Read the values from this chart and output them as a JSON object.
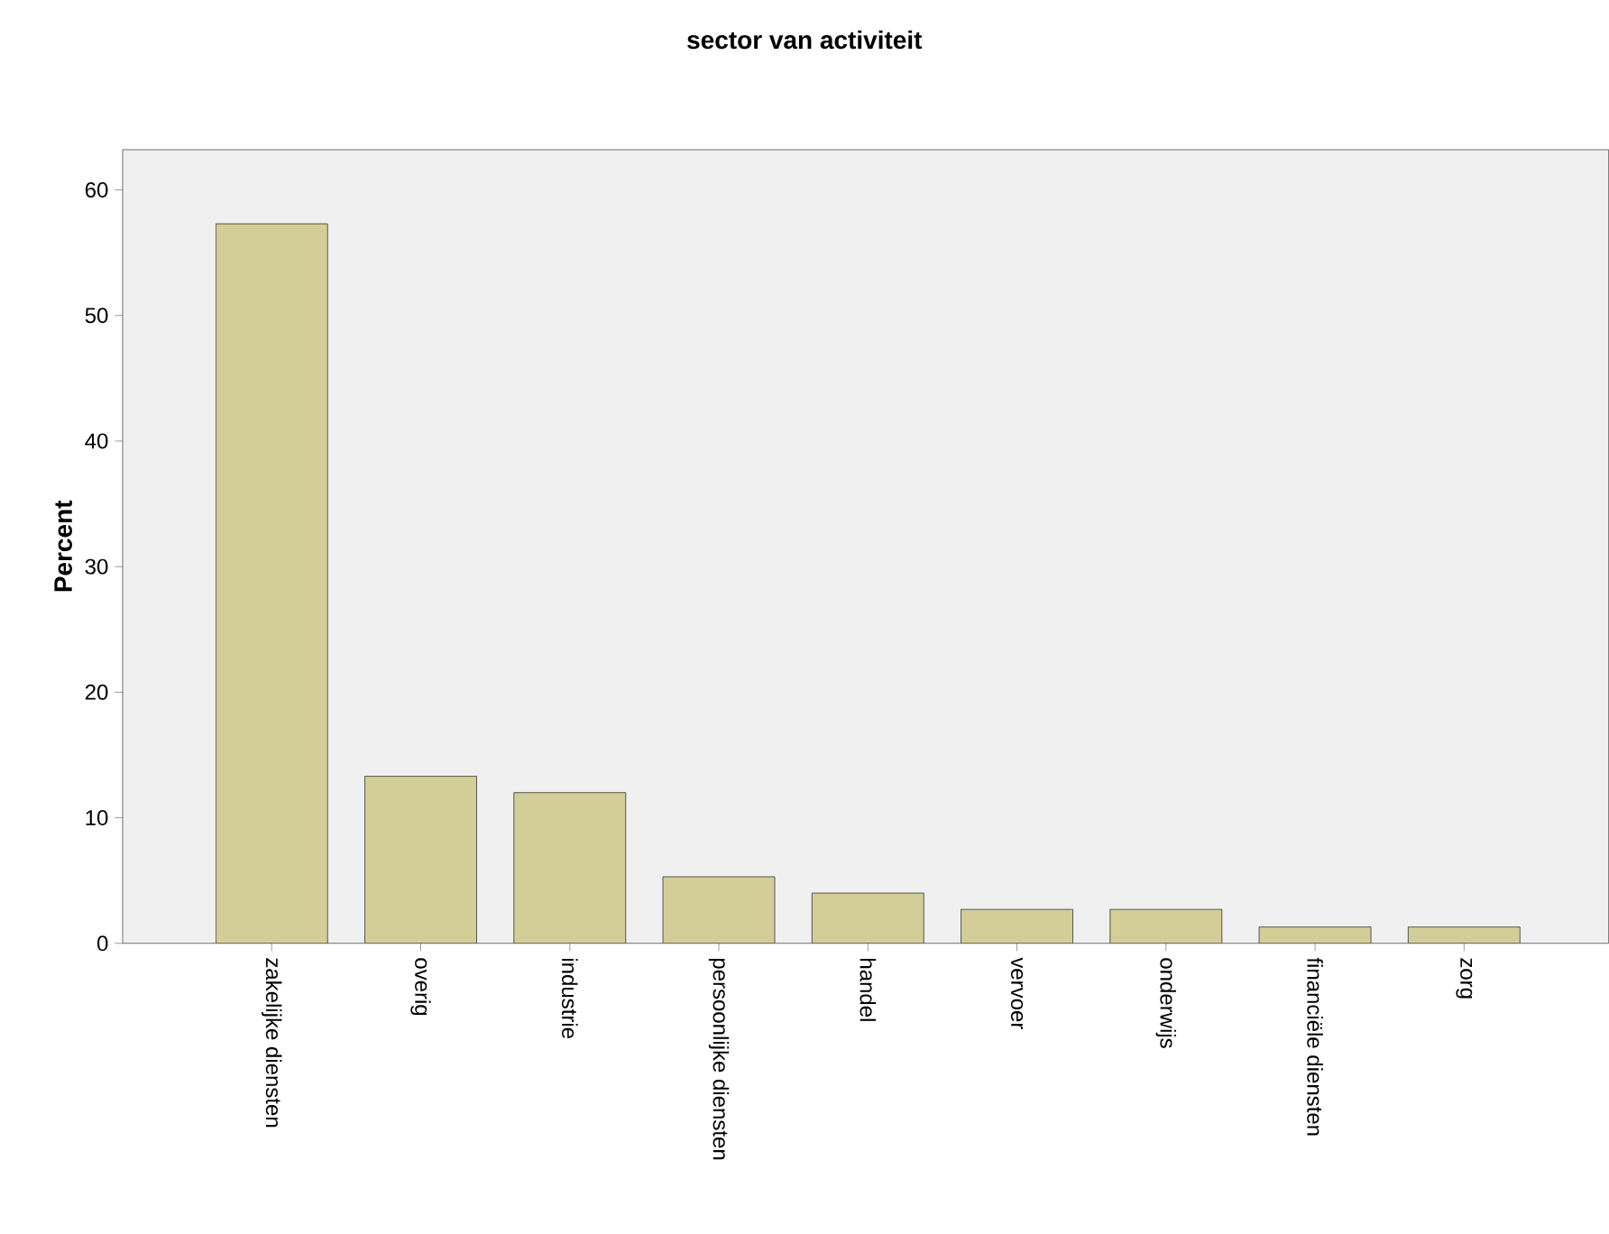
{
  "chart_data": {
    "type": "bar",
    "title": "sector van activiteit",
    "ylabel": "Percent",
    "categories": [
      "zakelijke diensten",
      "overig",
      "industrie",
      "persoonlijke diensten",
      "handel",
      "vervoer",
      "onderwijs",
      "financiële diensten",
      "zorg"
    ],
    "values": [
      57.3,
      13.3,
      12.0,
      5.3,
      4.0,
      2.7,
      2.7,
      1.3,
      1.3
    ],
    "color": "#d3ce97",
    "ylim": [
      0,
      63.2
    ],
    "yticks": [
      0,
      10,
      20,
      30,
      40,
      50,
      60
    ]
  }
}
